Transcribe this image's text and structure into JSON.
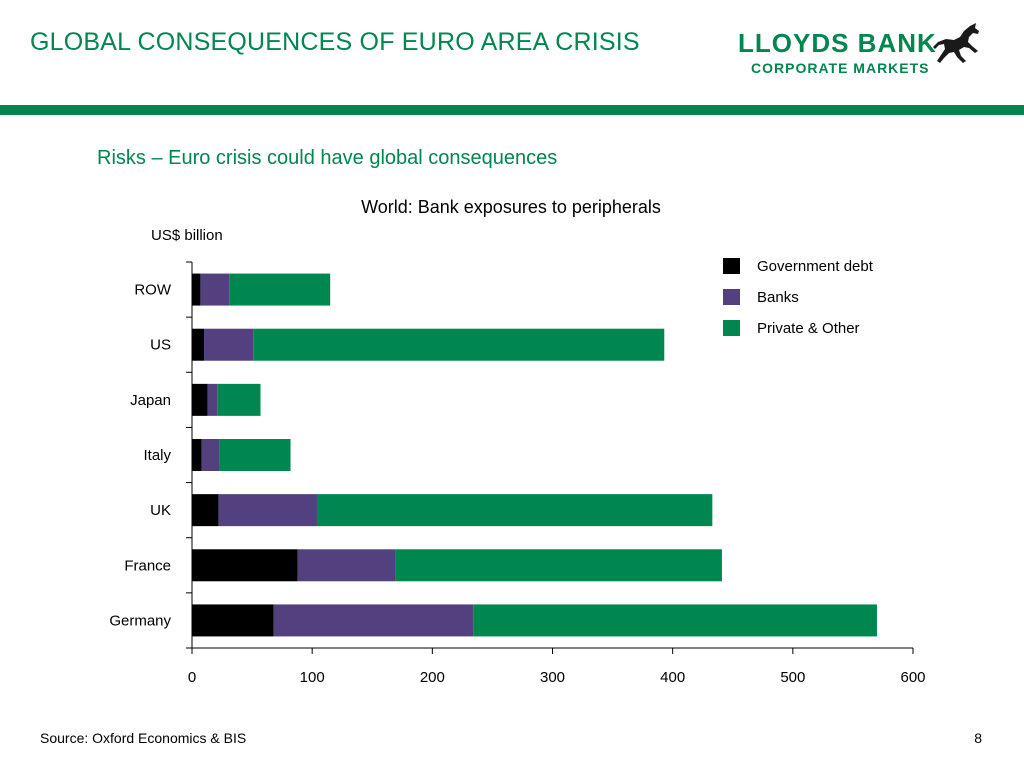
{
  "header": {
    "title": "GLOBAL CONSEQUENCES OF EURO AREA CRISIS",
    "logo": {
      "line1": "LLOYDS BANK",
      "line2": "CORPORATE MARKETS",
      "icon": "black-horse-icon"
    }
  },
  "subtitle": "Risks – Euro crisis could have global consequences",
  "chart_data": {
    "type": "bar",
    "orientation": "horizontal",
    "stacked": true,
    "title": "World: Bank exposures to peripherals",
    "unit_label": "US$ billion",
    "categories": [
      "ROW",
      "US",
      "Japan",
      "Italy",
      "UK",
      "France",
      "Germany"
    ],
    "series": [
      {
        "name": "Government debt",
        "color": "#000000",
        "values": [
          7,
          10,
          13,
          8,
          22,
          88,
          68
        ]
      },
      {
        "name": "Banks",
        "color": "#53407e",
        "values": [
          24,
          41,
          8,
          15,
          82,
          81,
          166
        ]
      },
      {
        "name": "Private & Other",
        "color": "#00864f",
        "values": [
          84,
          342,
          36,
          59,
          329,
          272,
          336
        ]
      }
    ],
    "xlim": [
      0,
      600
    ],
    "xticks": [
      "0",
      "100",
      "200",
      "300",
      "400",
      "500",
      "600"
    ],
    "grid": false,
    "legend_position": "top-right"
  },
  "footer": {
    "source": "Source: Oxford Economics & BIS",
    "page_number": "8"
  }
}
